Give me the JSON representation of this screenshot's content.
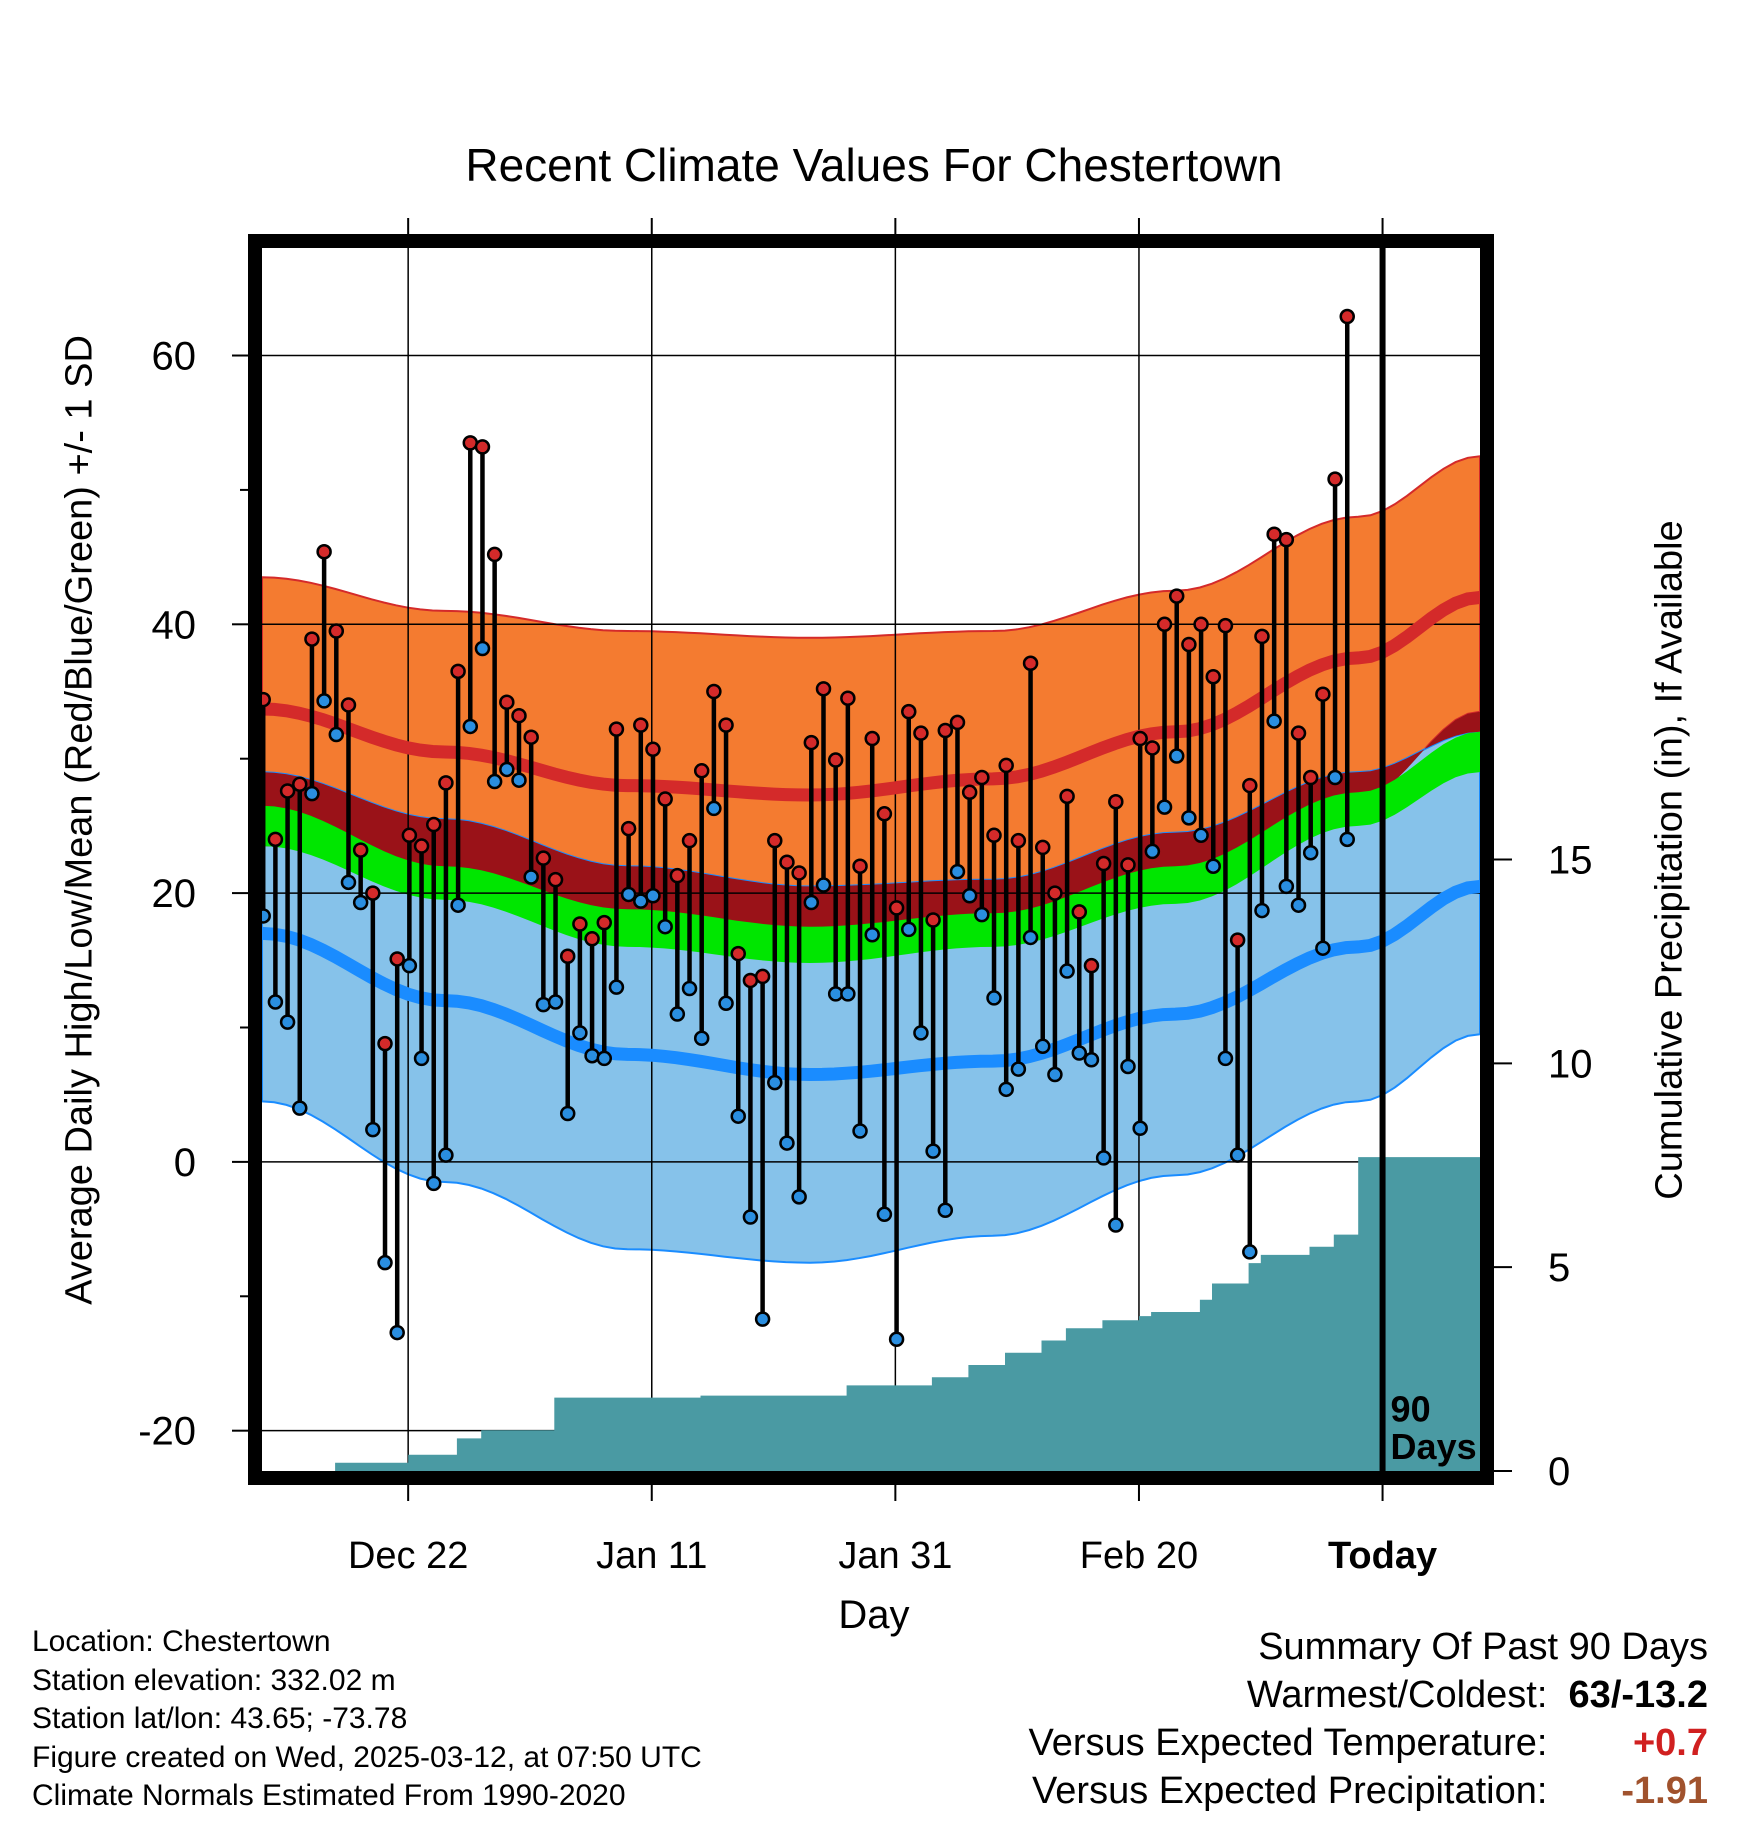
{
  "chart_data": {
    "type": "line",
    "title": "Recent Climate Values For Chestertown",
    "xlabel": "Day",
    "ylabel": "Average Daily High/Low/Mean (Red/Blue/Green) +/- 1 SD",
    "y2label": "Cumulative Precipitation (in), If Available",
    "ylim": [
      -23,
      68
    ],
    "y2lim": [
      0,
      30
    ],
    "y_ticks": [
      "-20",
      "0",
      "20",
      "40",
      "60"
    ],
    "y2_ticks": [
      "0",
      "5",
      "10",
      "15"
    ],
    "x_tick_labels": [
      "Dec 22",
      "Jan 11",
      "Jan 31",
      "Feb 20",
      "Today"
    ],
    "period_label": [
      "90",
      "Days"
    ],
    "grid": true,
    "colors": {
      "high": "#d42a2a",
      "high_band": "#f47b30",
      "low": "#1a8cff",
      "low_band": "#86c2ea",
      "mean": "#00e600",
      "overlap": "#9a1218",
      "precip": "#4a9aa3",
      "high_point": "#d42a2a",
      "low_point": "#2a8ee0"
    },
    "normals": {
      "day_index": [
        0,
        15,
        30,
        45,
        60,
        75,
        90,
        100
      ],
      "high_mean": [
        33.7,
        30.5,
        28.0,
        27.3,
        28.5,
        32.0,
        37.5,
        42.0
      ],
      "high_sd_upper": [
        43.5,
        41.0,
        39.5,
        39.0,
        39.5,
        42.5,
        48.0,
        52.5
      ],
      "high_sd_lower": [
        23.5,
        20.0,
        16.5,
        15.5,
        17.0,
        20.5,
        27.0,
        33.5
      ],
      "low_mean": [
        17.0,
        12.0,
        8.0,
        6.5,
        7.5,
        11.0,
        16.0,
        20.5
      ],
      "low_sd_upper": [
        29.0,
        25.5,
        22.0,
        20.5,
        21.0,
        24.5,
        29.0,
        32.0
      ],
      "low_sd_lower": [
        4.5,
        -1.5,
        -6.5,
        -7.5,
        -5.5,
        -1.0,
        4.5,
        9.5
      ],
      "mean_upper": [
        26.5,
        22.0,
        18.8,
        17.5,
        18.5,
        22.0,
        27.5,
        32.0
      ],
      "mean_lower": [
        23.5,
        19.5,
        16.0,
        14.8,
        16.0,
        19.2,
        25.0,
        29.0
      ]
    },
    "series": [
      {
        "name": "High",
        "values": [
          34.4,
          24,
          27.6,
          28.1,
          38.9,
          45.4,
          39.5,
          34,
          23.2,
          20,
          8.8,
          15.1,
          24.3,
          23.5,
          25.1,
          28.2,
          36.5,
          53.5,
          53.2,
          45.2,
          34.2,
          33.2,
          31.6,
          22.6,
          21,
          15.3,
          17.7,
          16.6,
          17.8,
          32.2,
          24.8,
          32.5,
          30.7,
          27,
          21.3,
          23.9,
          29.1,
          35,
          32.5,
          15.5,
          13.5,
          13.8,
          23.9,
          22.3,
          21.5,
          31.2,
          35.2,
          29.9,
          34.5,
          22,
          31.5,
          25.9,
          18.9,
          33.5,
          31.9,
          18,
          32.1,
          32.7,
          27.5,
          28.6,
          24.3,
          29.5,
          23.9,
          37.1,
          23.4,
          20,
          27.2,
          18.6,
          14.6,
          22.2,
          26.8,
          22.1,
          31.5,
          30.8,
          40,
          42.1,
          38.5,
          40,
          36.1,
          39.9,
          16.5,
          28,
          39.1,
          46.7,
          46.3,
          31.9,
          28.6,
          34.8,
          50.8,
          62.9
        ],
        "point_color": "#d42a2a"
      },
      {
        "name": "Low",
        "values": [
          18.3,
          11.9,
          10.4,
          4,
          27.4,
          34.3,
          31.8,
          20.8,
          19.3,
          2.4,
          -7.5,
          -12.7,
          14.6,
          7.7,
          -1.6,
          0.5,
          19.1,
          32.4,
          38.2,
          28.3,
          29.2,
          28.4,
          21.2,
          11.7,
          11.9,
          3.6,
          9.6,
          7.9,
          7.7,
          13,
          19.9,
          19.4,
          19.8,
          17.5,
          11,
          12.9,
          9.2,
          26.3,
          11.8,
          3.4,
          -4.1,
          -11.7,
          5.9,
          1.4,
          -2.6,
          19.3,
          20.6,
          12.5,
          12.5,
          2.3,
          16.9,
          -3.9,
          -13.2,
          17.3,
          9.6,
          0.8,
          -3.6,
          21.6,
          19.8,
          18.4,
          12.2,
          5.4,
          6.9,
          16.7,
          8.6,
          6.5,
          14.2,
          8.1,
          7.6,
          0.3,
          -4.7,
          7.1,
          2.5,
          23.1,
          26.4,
          30.2,
          25.6,
          24.3,
          22,
          7.7,
          0.5,
          -6.7,
          18.7,
          32.8,
          20.5,
          19.1,
          23,
          15.9,
          28.6,
          24
        ],
        "point_color": "#2a8ee0"
      },
      {
        "name": "Cumulative Precipitation",
        "x": [
          0,
          6,
          12,
          16,
          18,
          24,
          36,
          48,
          55,
          58,
          61,
          64,
          66,
          69,
          72,
          73,
          77,
          78,
          81,
          82,
          86,
          88,
          90,
          100
        ],
        "values": [
          0,
          0.2,
          0.4,
          0.8,
          1.0,
          1.8,
          1.85,
          2.1,
          2.3,
          2.6,
          2.9,
          3.2,
          3.5,
          3.7,
          3.8,
          3.9,
          4.2,
          4.6,
          5.1,
          5.3,
          5.5,
          5.8,
          7.7,
          7.7
        ],
        "color": "#4a9aa3"
      }
    ],
    "annotations": [
      "90 Days"
    ]
  },
  "footer": {
    "location": "Location: Chestertown",
    "elevation": "Station elevation: 332.02 m",
    "latlon": "Station lat/lon: 43.65; -73.78",
    "created": "Figure created on Wed, 2025-03-12, at 07:50 UTC",
    "normals": "Climate Normals Estimated From 1990-2020"
  },
  "summary": {
    "heading": "Summary Of Past 90 Days",
    "warmest_label": "Warmest/Coldest:",
    "warmest_value": "63/-13.2",
    "temp_label": "Versus Expected Temperature:",
    "temp_value": "+0.7",
    "precip_label": "Versus Expected Precipitation:",
    "precip_value": "-1.91"
  }
}
